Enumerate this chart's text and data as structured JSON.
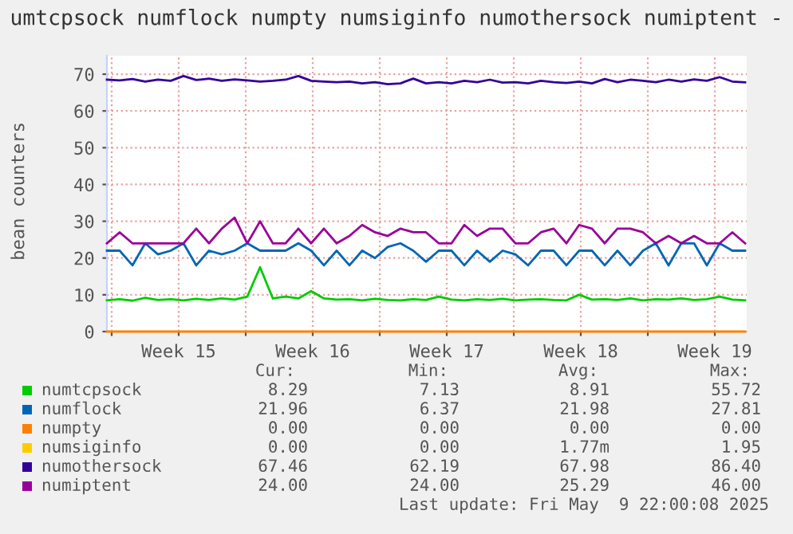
{
  "chart_data": {
    "type": "line",
    "title": "umtcpsock numflock numpty numsiginfo numothersock numiptent -",
    "ylabel": "bean counters",
    "x": [
      "2025-04-06T18:00",
      "2025-04-07T10:00",
      "2025-04-08T02:00",
      "2025-04-08T18:00",
      "2025-04-09T10:00",
      "2025-04-10T02:00",
      "2025-04-10T18:00",
      "2025-04-11T10:00",
      "2025-04-12T02:00",
      "2025-04-12T18:00",
      "2025-04-13T10:00",
      "2025-04-14T02:00",
      "2025-04-14T18:00",
      "2025-04-15T10:00",
      "2025-04-16T02:00",
      "2025-04-16T18:00",
      "2025-04-17T10:00",
      "2025-04-18T02:00",
      "2025-04-18T18:00",
      "2025-04-19T10:00",
      "2025-04-20T02:00",
      "2025-04-20T18:00",
      "2025-04-21T10:00",
      "2025-04-22T02:00",
      "2025-04-22T18:00",
      "2025-04-23T10:00",
      "2025-04-24T02:00",
      "2025-04-24T18:00",
      "2025-04-25T10:00",
      "2025-04-26T02:00",
      "2025-04-26T18:00",
      "2025-04-27T10:00",
      "2025-04-28T02:00",
      "2025-04-28T18:00",
      "2025-04-29T10:00",
      "2025-04-30T02:00",
      "2025-04-30T18:00",
      "2025-05-01T10:00",
      "2025-05-02T02:00",
      "2025-05-02T18:00",
      "2025-05-03T10:00",
      "2025-05-04T02:00",
      "2025-05-04T18:00",
      "2025-05-05T10:00",
      "2025-05-06T02:00",
      "2025-05-06T18:00",
      "2025-05-07T10:00",
      "2025-05-08T02:00",
      "2025-05-08T18:00",
      "2025-05-09T10:00",
      "2025-05-10T02:00"
    ],
    "xlim": [
      "2025-04-06T18:00",
      "2025-05-10T04:00"
    ],
    "xticks": [
      {
        "value": "2025-04-07",
        "label": null
      },
      {
        "value": "2025-04-10T12:00",
        "label": "Week 15"
      },
      {
        "value": "2025-04-14",
        "label": null
      },
      {
        "value": "2025-04-17T12:00",
        "label": "Week 16"
      },
      {
        "value": "2025-04-21",
        "label": null
      },
      {
        "value": "2025-04-24T12:00",
        "label": "Week 17"
      },
      {
        "value": "2025-04-28",
        "label": null
      },
      {
        "value": "2025-05-01T12:00",
        "label": "Week 18"
      },
      {
        "value": "2025-05-05",
        "label": null
      },
      {
        "value": "2025-05-08T12:00",
        "label": "Week 19"
      }
    ],
    "ylim": [
      0,
      75
    ],
    "yticks": [
      0,
      10,
      20,
      30,
      40,
      50,
      60,
      70
    ],
    "grid": true,
    "legend": "bottom",
    "series": [
      {
        "name": "numtcpsock",
        "color": "#00cc00",
        "values": [
          8.5,
          8.8,
          8.4,
          9.2,
          8.6,
          8.8,
          8.5,
          8.9,
          8.6,
          9.0,
          8.7,
          9.5,
          17.5,
          9.0,
          9.5,
          9.0,
          11.0,
          9.0,
          8.7,
          8.8,
          8.5,
          8.9,
          8.6,
          8.5,
          8.8,
          8.6,
          9.5,
          8.7,
          8.5,
          8.8,
          8.6,
          8.9,
          8.5,
          8.7,
          8.8,
          8.6,
          8.5,
          10.0,
          8.7,
          8.8,
          8.6,
          9.0,
          8.5,
          8.8,
          8.7,
          9.0,
          8.6,
          8.8,
          9.5,
          8.7,
          8.5
        ]
      },
      {
        "name": "numflock",
        "color": "#0066b3",
        "values": [
          22,
          22,
          18,
          24,
          21,
          22,
          24,
          18,
          22,
          21,
          22,
          24,
          22,
          22,
          22,
          24,
          22,
          18,
          22,
          18,
          22,
          20,
          23,
          24,
          22,
          19,
          22,
          22,
          18,
          22,
          19,
          22,
          21,
          18,
          22,
          22,
          18,
          22,
          22,
          18,
          22,
          18,
          22,
          24,
          18,
          24,
          24,
          18,
          24,
          22,
          22
        ]
      },
      {
        "name": "numpty",
        "color": "#ff8000",
        "values": [
          0,
          0,
          0,
          0,
          0,
          0,
          0,
          0,
          0,
          0,
          0,
          0,
          0,
          0,
          0,
          0,
          0,
          0,
          0,
          0,
          0,
          0,
          0,
          0,
          0,
          0,
          0,
          0,
          0,
          0,
          0,
          0,
          0,
          0,
          0,
          0,
          0,
          0,
          0,
          0,
          0,
          0,
          0,
          0,
          0,
          0,
          0,
          0,
          0,
          0,
          0
        ]
      },
      {
        "name": "numsiginfo",
        "color": "#ffcc00",
        "values": [
          null,
          null,
          null,
          null,
          null,
          null,
          null,
          null,
          null,
          null,
          null,
          null,
          null,
          null,
          null,
          null,
          null,
          null,
          null,
          null,
          null,
          null,
          null,
          null,
          null,
          null,
          null,
          null,
          null,
          null,
          null,
          null,
          null,
          null,
          null,
          null,
          null,
          null,
          null,
          null,
          null,
          null,
          null,
          null,
          null,
          null,
          null,
          null,
          null,
          null,
          null
        ]
      },
      {
        "name": "numothersock",
        "color": "#330099",
        "values": [
          68.5,
          68.3,
          68.7,
          68,
          68.5,
          68.2,
          69.5,
          68.4,
          68.8,
          68.2,
          68.6,
          68.3,
          68,
          68.2,
          68.5,
          69.5,
          68.2,
          68,
          67.8,
          68,
          67.5,
          67.8,
          67.3,
          67.5,
          68.8,
          67.5,
          67.8,
          67.5,
          68.2,
          67.8,
          68.5,
          67.7,
          67.8,
          67.5,
          68.2,
          67.8,
          67.6,
          68,
          67.5,
          68.7,
          67.8,
          68.5,
          68.2,
          67.8,
          68.5,
          68,
          68.6,
          68.2,
          69.2,
          68,
          67.8
        ]
      },
      {
        "name": "numiptent",
        "color": "#990099",
        "values": [
          24,
          27,
          24,
          24,
          24,
          24,
          24,
          28,
          24,
          28,
          31,
          24,
          30,
          24,
          24,
          28,
          24,
          28,
          24,
          26,
          29,
          27,
          26,
          28,
          27,
          27,
          24,
          24,
          29,
          26,
          28,
          28,
          24,
          24,
          27,
          28,
          24,
          29,
          28,
          24,
          28,
          28,
          27,
          24,
          26,
          24,
          26,
          24,
          24,
          27,
          24
        ]
      }
    ],
    "annotations": [
      "Cur:",
      "Min:",
      "Avg:",
      "Max:",
      "8.29",
      "7.13",
      "8.91",
      "55.72",
      "21.96",
      "6.37",
      "21.98",
      "27.81",
      "0.00",
      "0.00",
      "0.00",
      "0.00",
      "0.00",
      "0.00",
      "1.77m",
      "1.95",
      "67.46",
      "62.19",
      "67.98",
      "86.40",
      "24.00",
      "24.00",
      "25.29",
      "46.00",
      "Last update: Fri May  9 22:00:08 2025"
    ]
  }
}
